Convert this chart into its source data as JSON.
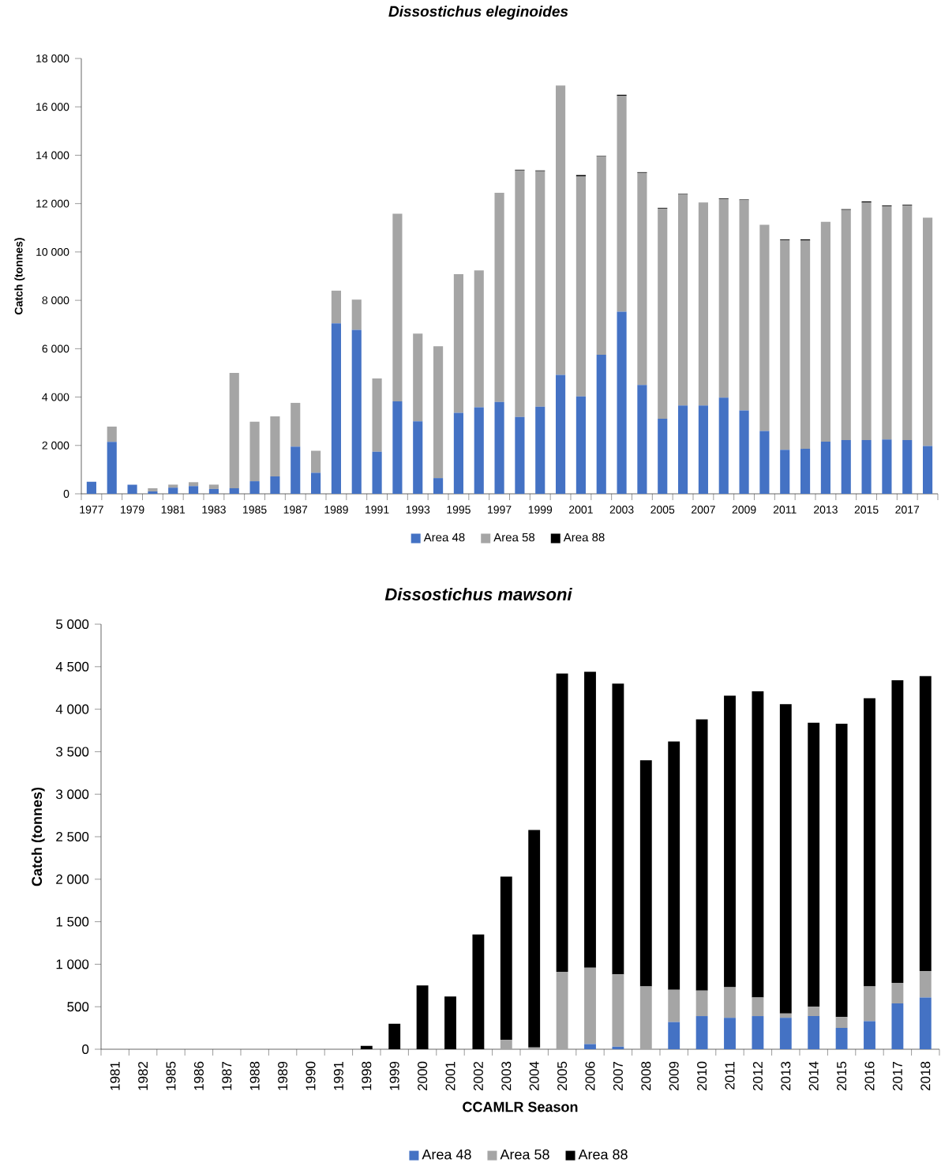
{
  "chart_data": [
    {
      "type": "bar",
      "stacked": true,
      "title": "Dissostichus eleginoides",
      "ylabel": "Catch (tonnes)",
      "legend": "bottom",
      "categories": [
        "1977",
        null,
        "1979",
        null,
        "1981",
        null,
        "1983",
        null,
        "1985",
        null,
        "1987",
        null,
        "1989",
        null,
        "1991",
        null,
        "1993",
        null,
        "1995",
        null,
        "1997",
        null,
        "1999",
        null,
        "2001",
        null,
        "2003",
        null,
        "2005",
        null,
        "2007",
        null,
        "2009",
        null,
        "2011",
        null,
        "2013",
        null,
        "2015",
        null,
        "2017",
        null
      ],
      "ylim": [
        0,
        18000
      ],
      "yticks": [
        0,
        {
          "value": 2000,
          "label": "2 000"
        },
        {
          "value": 4000,
          "label": "4 000"
        },
        {
          "value": 6000,
          "label": "6 000"
        },
        {
          "value": 8000,
          "label": "8 000"
        },
        {
          "value": 10000,
          "label": "10 000"
        },
        {
          "value": 12000,
          "label": "12 000"
        },
        {
          "value": 14000,
          "label": "14 000"
        },
        {
          "value": 16000,
          "label": "16 000"
        },
        {
          "value": 18000,
          "label": "18 000"
        }
      ],
      "series": [
        {
          "name": "Area 48",
          "color": "#4472c4",
          "values": [
            500,
            2150,
            380,
            100,
            250,
            320,
            200,
            230,
            520,
            720,
            1950,
            870,
            7050,
            6780,
            1740,
            3820,
            3000,
            650,
            3350,
            3580,
            3800,
            3180,
            3600,
            4920,
            4030,
            5750,
            7530,
            4500,
            3100,
            3650,
            3650,
            3980,
            3450,
            2600,
            1820,
            1860,
            2160,
            2220,
            2220,
            2250,
            2220,
            1980
          ]
        },
        {
          "name": "Area 58",
          "color": "#a5a5a5",
          "values": [
            0,
            630,
            0,
            130,
            130,
            160,
            180,
            4770,
            2460,
            2480,
            1810,
            910,
            1350,
            1250,
            3030,
            7760,
            3620,
            5450,
            5730,
            5660,
            8650,
            10190,
            9740,
            11960,
            9090,
            8210,
            8920,
            8770,
            8690,
            8720,
            8400,
            8210,
            8690,
            8520,
            8670,
            8610,
            9090,
            9520,
            9820,
            9640,
            9700,
            9440
          ]
        },
        {
          "name": "Area 88",
          "color": "#000000",
          "values": [
            0,
            0,
            0,
            0,
            0,
            0,
            0,
            0,
            0,
            0,
            0,
            0,
            0,
            0,
            0,
            0,
            0,
            0,
            0,
            0,
            0,
            30,
            30,
            0,
            60,
            20,
            50,
            30,
            30,
            30,
            0,
            30,
            30,
            0,
            30,
            50,
            0,
            30,
            50,
            30,
            30,
            0
          ]
        }
      ]
    },
    {
      "type": "bar",
      "stacked": true,
      "title": "Dissostichus mawsoni",
      "xlabel": "CCAMLR Season",
      "ylabel": "Catch (tonnes)",
      "legend": "bottom",
      "categories": [
        "1981",
        "1982",
        "1985",
        "1986",
        "1987",
        "1988",
        "1989",
        "1990",
        "1991",
        "1998",
        "1999",
        "2000",
        "2001",
        "2002",
        "2003",
        "2004",
        "2005",
        "2006",
        "2007",
        "2008",
        "2009",
        "2010",
        "2011",
        "2012",
        "2013",
        "2014",
        "2015",
        "2016",
        "2017",
        "2018"
      ],
      "ylim": [
        0,
        5000
      ],
      "yticks": [
        0,
        500,
        {
          "value": 1000,
          "label": "1 000"
        },
        {
          "value": 1500,
          "label": "1 500"
        },
        {
          "value": 2000,
          "label": "2 000"
        },
        {
          "value": 2500,
          "label": "2 500"
        },
        {
          "value": 3000,
          "label": "3 000"
        },
        {
          "value": 3500,
          "label": "3 500"
        },
        {
          "value": 4000,
          "label": "4 000"
        },
        {
          "value": 4500,
          "label": "4 500"
        },
        {
          "value": 5000,
          "label": "5 000"
        }
      ],
      "series": [
        {
          "name": "Area 48",
          "color": "#4472c4",
          "values": [
            0,
            0,
            0,
            0,
            0,
            0,
            0,
            0,
            0,
            0,
            0,
            0,
            0,
            0,
            0,
            0,
            0,
            60,
            30,
            0,
            320,
            390,
            370,
            390,
            370,
            390,
            250,
            330,
            540,
            610
          ]
        },
        {
          "name": "Area 58",
          "color": "#a5a5a5",
          "values": [
            0,
            0,
            0,
            0,
            0,
            0,
            0,
            0,
            0,
            0,
            0,
            0,
            0,
            0,
            110,
            20,
            910,
            900,
            850,
            740,
            380,
            300,
            360,
            220,
            50,
            110,
            130,
            410,
            240,
            310
          ]
        },
        {
          "name": "Area 88",
          "color": "#000000",
          "values": [
            0,
            0,
            0,
            0,
            0,
            0,
            0,
            0,
            0,
            40,
            300,
            750,
            620,
            1350,
            1920,
            2560,
            3510,
            3480,
            3420,
            2660,
            2920,
            3190,
            3430,
            3600,
            3640,
            3340,
            3450,
            3390,
            3560,
            3470
          ]
        }
      ]
    }
  ]
}
